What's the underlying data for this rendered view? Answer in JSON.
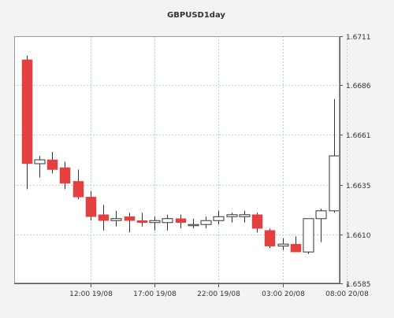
{
  "chart_data": {
    "type": "candlestick",
    "title": "GBPUSD1day",
    "xlabel": "",
    "ylabel": "",
    "ylim": [
      1.6585,
      1.6711
    ],
    "y_ticks": [
      "1.6711",
      "1.6686",
      "1.6661",
      "1.6635",
      "1.6610",
      "1.6585"
    ],
    "x_tick_labels": [
      {
        "label": "12:00 19/08",
        "index": 5
      },
      {
        "label": "17:00 19/08",
        "index": 10
      },
      {
        "label": "22:00 19/08",
        "index": 15
      },
      {
        "label": "03:00 20/08",
        "index": 20
      },
      {
        "label": "08:00 20/08",
        "index": 25
      }
    ],
    "grid": true,
    "colors": {
      "bull": "#ffffff",
      "bear": "#e54040",
      "outline": "#333333",
      "grid": "#a8dce0",
      "plot_bg": "#ffffff",
      "page_bg": "#f3f3f3"
    },
    "candles": [
      {
        "open": 1.6699,
        "high": 1.6701,
        "low": 1.6633,
        "close": 1.6646
      },
      {
        "open": 1.6646,
        "high": 1.665,
        "low": 1.6639,
        "close": 1.6648
      },
      {
        "open": 1.6648,
        "high": 1.6652,
        "low": 1.6641,
        "close": 1.6643
      },
      {
        "open": 1.6644,
        "high": 1.6647,
        "low": 1.6633,
        "close": 1.6636
      },
      {
        "open": 1.6637,
        "high": 1.6643,
        "low": 1.6628,
        "close": 1.6629
      },
      {
        "open": 1.6629,
        "high": 1.6632,
        "low": 1.6617,
        "close": 1.6619
      },
      {
        "open": 1.662,
        "high": 1.6625,
        "low": 1.6612,
        "close": 1.6617
      },
      {
        "open": 1.6617,
        "high": 1.6622,
        "low": 1.6614,
        "close": 1.6618
      },
      {
        "open": 1.6619,
        "high": 1.6621,
        "low": 1.6611,
        "close": 1.6617
      },
      {
        "open": 1.6617,
        "high": 1.6621,
        "low": 1.6614,
        "close": 1.6616
      },
      {
        "open": 1.6616,
        "high": 1.6619,
        "low": 1.6612,
        "close": 1.6617
      },
      {
        "open": 1.6616,
        "high": 1.662,
        "low": 1.6612,
        "close": 1.6618
      },
      {
        "open": 1.6618,
        "high": 1.662,
        "low": 1.6613,
        "close": 1.6616
      },
      {
        "open": 1.6615,
        "high": 1.6618,
        "low": 1.6613,
        "close": 1.6615
      },
      {
        "open": 1.6615,
        "high": 1.6619,
        "low": 1.6613,
        "close": 1.6617
      },
      {
        "open": 1.6617,
        "high": 1.6622,
        "low": 1.6615,
        "close": 1.6619
      },
      {
        "open": 1.6619,
        "high": 1.6621,
        "low": 1.6616,
        "close": 1.662
      },
      {
        "open": 1.6619,
        "high": 1.6622,
        "low": 1.6616,
        "close": 1.662
      },
      {
        "open": 1.662,
        "high": 1.6621,
        "low": 1.6611,
        "close": 1.6613
      },
      {
        "open": 1.6612,
        "high": 1.6613,
        "low": 1.6603,
        "close": 1.6604
      },
      {
        "open": 1.6604,
        "high": 1.6608,
        "low": 1.6602,
        "close": 1.6605
      },
      {
        "open": 1.6605,
        "high": 1.6609,
        "low": 1.6601,
        "close": 1.6601
      },
      {
        "open": 1.6601,
        "high": 1.6618,
        "low": 1.66,
        "close": 1.6618
      },
      {
        "open": 1.6618,
        "high": 1.6623,
        "low": 1.6606,
        "close": 1.6622
      },
      {
        "open": 1.6622,
        "high": 1.6679,
        "low": 1.6621,
        "close": 1.665
      }
    ]
  }
}
